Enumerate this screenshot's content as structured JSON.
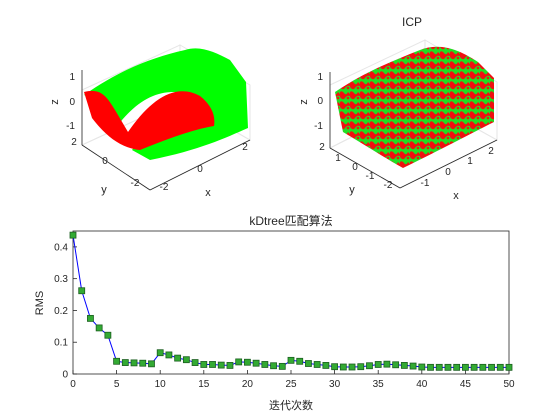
{
  "figure": {
    "colors": {
      "background": "#ffffff",
      "axis": "#262626",
      "grid": "#e6e6e6",
      "surface_green": "#00ff00",
      "surface_red": "#ff0000",
      "line": "#0000ff",
      "marker_fill": "#33aa33",
      "marker_edge": "#1b5e20"
    }
  },
  "chart_data": [
    {
      "type": "surface",
      "title": "",
      "xlabel": "x",
      "ylabel": "y",
      "zlabel": "z",
      "x_ticks": [
        "-2",
        "0",
        "2"
      ],
      "y_ticks": [
        "2",
        "0",
        "-2"
      ],
      "z_ticks": [
        "1",
        "0",
        "-1"
      ],
      "series": [
        {
          "color": "#00ff00"
        },
        {
          "color": "#ff0000"
        }
      ],
      "grid": true
    },
    {
      "type": "surface",
      "title": "ICP",
      "xlabel": "x",
      "ylabel": "y",
      "zlabel": "z",
      "x_ticks": [
        "-1",
        "0",
        "1",
        "2"
      ],
      "y_ticks": [
        "2",
        "1",
        "0",
        "-1",
        "-2"
      ],
      "z_ticks": [
        "1",
        "0",
        "-1"
      ],
      "series": [
        {
          "color": "#00ff00"
        },
        {
          "color": "#ff0000"
        }
      ],
      "grid": true
    },
    {
      "type": "line",
      "title": "kDtree匹配算法",
      "xlabel": "迭代次数",
      "ylabel": "RMS",
      "xlim": [
        0,
        50
      ],
      "ylim": [
        0,
        0.45
      ],
      "x_ticks": [
        "0",
        "5",
        "10",
        "15",
        "20",
        "25",
        "30",
        "35",
        "40",
        "45",
        "50"
      ],
      "y_ticks": [
        "0",
        "0.1",
        "0.2",
        "0.3",
        "0.4"
      ],
      "x": [
        0,
        1,
        2,
        3,
        4,
        5,
        6,
        7,
        8,
        9,
        10,
        11,
        12,
        13,
        14,
        15,
        16,
        17,
        18,
        19,
        20,
        21,
        22,
        23,
        24,
        25,
        26,
        27,
        28,
        29,
        30,
        31,
        32,
        33,
        34,
        35,
        36,
        37,
        38,
        39,
        40,
        41,
        42,
        43,
        44,
        45,
        46,
        47,
        48,
        49,
        50
      ],
      "values": [
        0.437,
        0.262,
        0.175,
        0.145,
        0.122,
        0.04,
        0.036,
        0.035,
        0.034,
        0.032,
        0.067,
        0.06,
        0.05,
        0.045,
        0.036,
        0.03,
        0.03,
        0.028,
        0.027,
        0.038,
        0.037,
        0.034,
        0.03,
        0.026,
        0.024,
        0.043,
        0.04,
        0.033,
        0.03,
        0.027,
        0.023,
        0.022,
        0.022,
        0.023,
        0.026,
        0.03,
        0.031,
        0.029,
        0.027,
        0.025,
        0.022,
        0.021,
        0.021,
        0.021,
        0.021,
        0.021,
        0.021,
        0.021,
        0.021,
        0.021,
        0.021
      ],
      "grid": false
    }
  ]
}
